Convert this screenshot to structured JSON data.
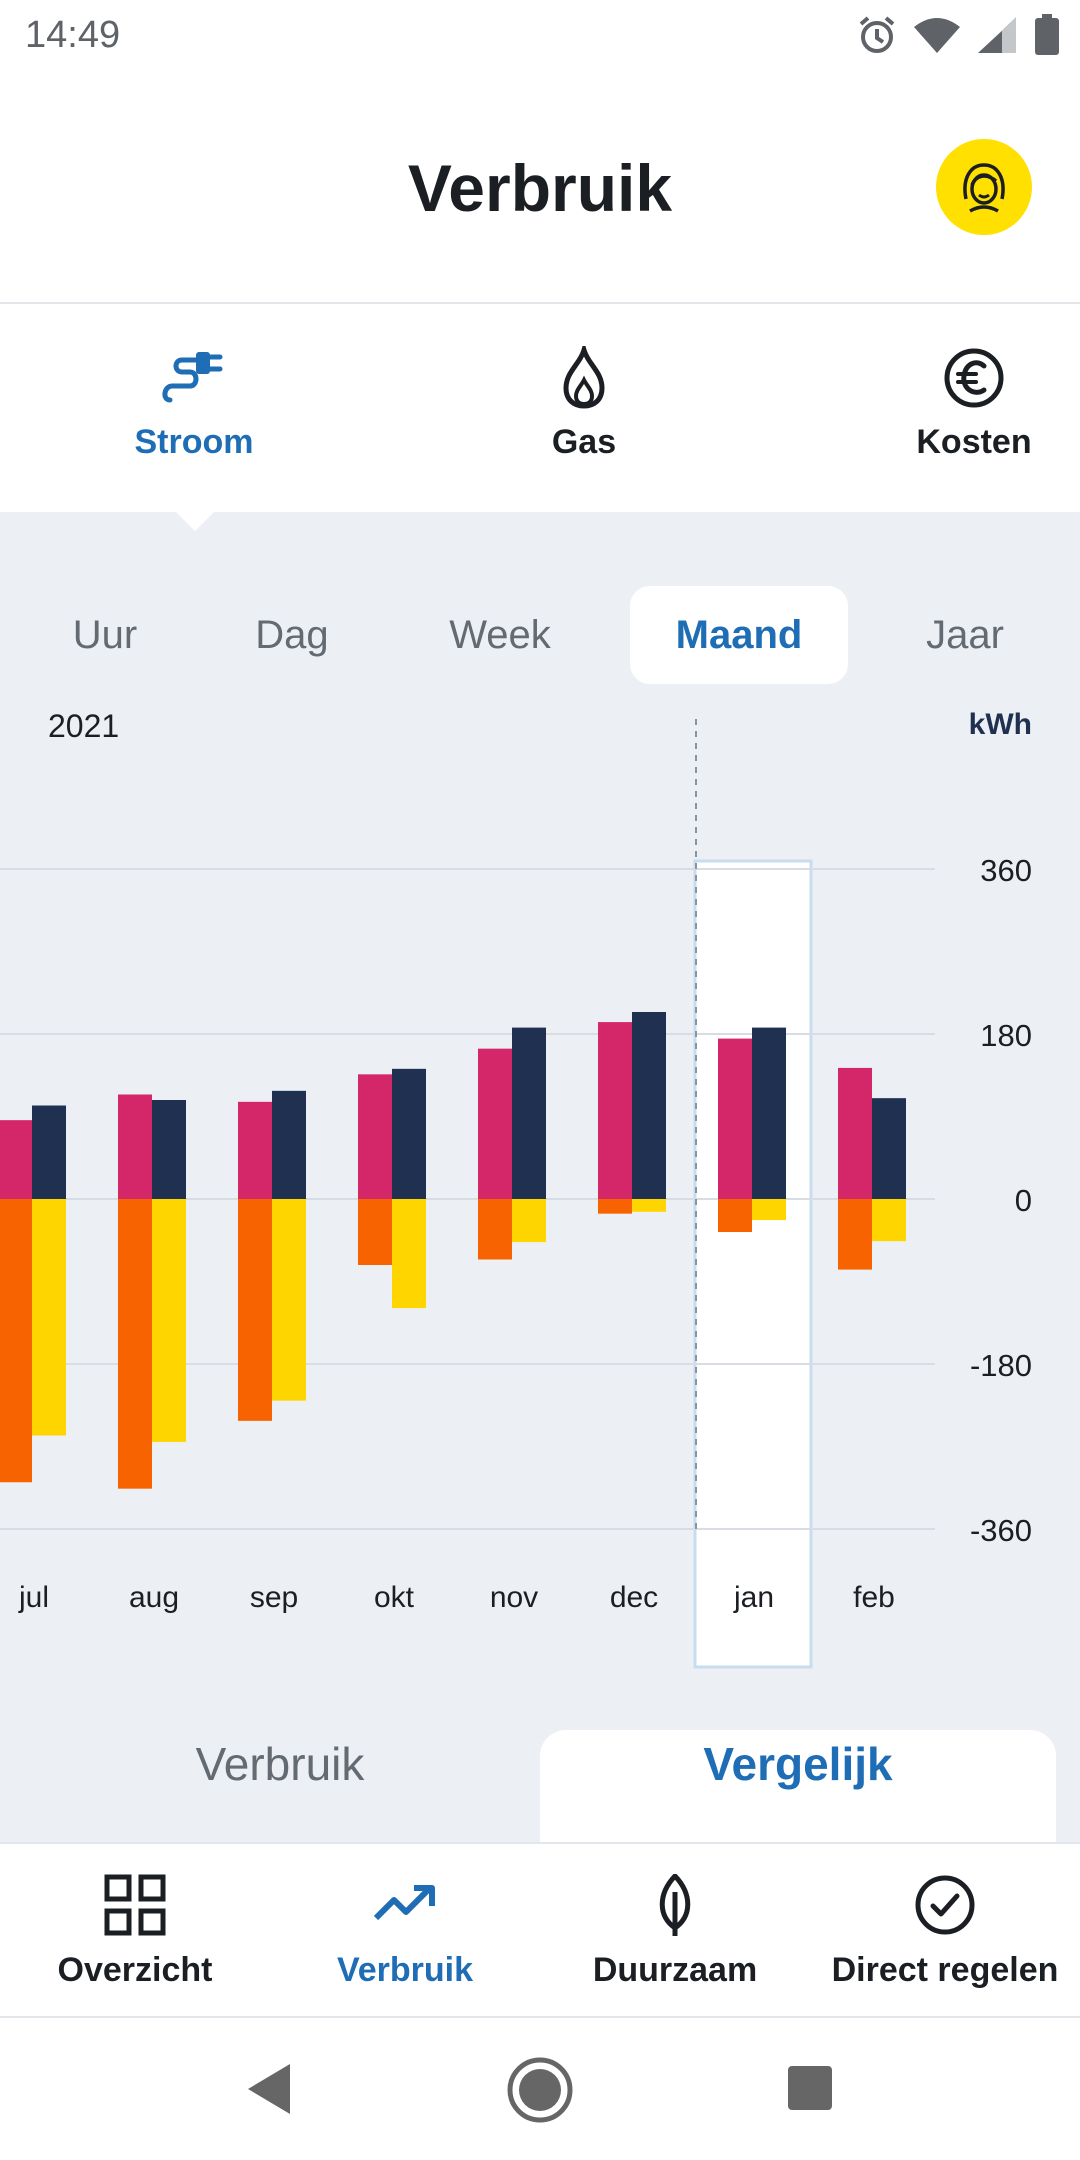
{
  "status": {
    "time": "14:49"
  },
  "header": {
    "title": "Verbruik"
  },
  "energy_tabs": [
    {
      "label": "Stroom",
      "icon": "plug-icon",
      "active": true
    },
    {
      "label": "Gas",
      "icon": "flame-icon",
      "active": false
    },
    {
      "label": "Kosten",
      "icon": "euro-icon",
      "active": false
    }
  ],
  "periods": [
    {
      "label": "Uur",
      "active": false
    },
    {
      "label": "Dag",
      "active": false
    },
    {
      "label": "Week",
      "active": false
    },
    {
      "label": "Maand",
      "active": true
    },
    {
      "label": "Jaar",
      "active": false
    }
  ],
  "chart_data": {
    "type": "bar",
    "year_label": "2021",
    "unit": "kWh",
    "ylim": [
      -360,
      360
    ],
    "yticks": [
      "360",
      "180",
      "0",
      "-180",
      "-360"
    ],
    "categories": [
      "jul",
      "aug",
      "sep",
      "okt",
      "nov",
      "dec",
      "jan",
      "feb"
    ],
    "selected_category": "jan",
    "colors": {
      "pink": "#d3276a",
      "navy": "#1f3050",
      "orange": "#f76300",
      "yellow": "#ffd500"
    },
    "series": [
      {
        "color": "pink",
        "values": [
          86,
          114,
          106,
          136,
          164,
          193,
          175,
          143
        ]
      },
      {
        "color": "navy",
        "values": [
          102,
          108,
          118,
          142,
          187,
          204,
          187,
          110
        ]
      },
      {
        "color": "orange",
        "values": [
          -309,
          -316,
          -242,
          -72,
          -66,
          -16,
          -36,
          -77
        ]
      },
      {
        "color": "yellow",
        "values": [
          -258,
          -265,
          -220,
          -119,
          -47,
          -14,
          -23,
          -46
        ]
      }
    ]
  },
  "toggle": {
    "left": "Verbruik",
    "right": "Vergelijk"
  },
  "bottom_nav": [
    {
      "label": "Overzicht",
      "icon": "grid-icon",
      "active": false
    },
    {
      "label": "Verbruik",
      "icon": "trend-up-icon",
      "active": true
    },
    {
      "label": "Duurzaam",
      "icon": "leaf-icon",
      "active": false
    },
    {
      "label": "Direct regelen",
      "icon": "check-circle-icon",
      "active": false
    }
  ]
}
